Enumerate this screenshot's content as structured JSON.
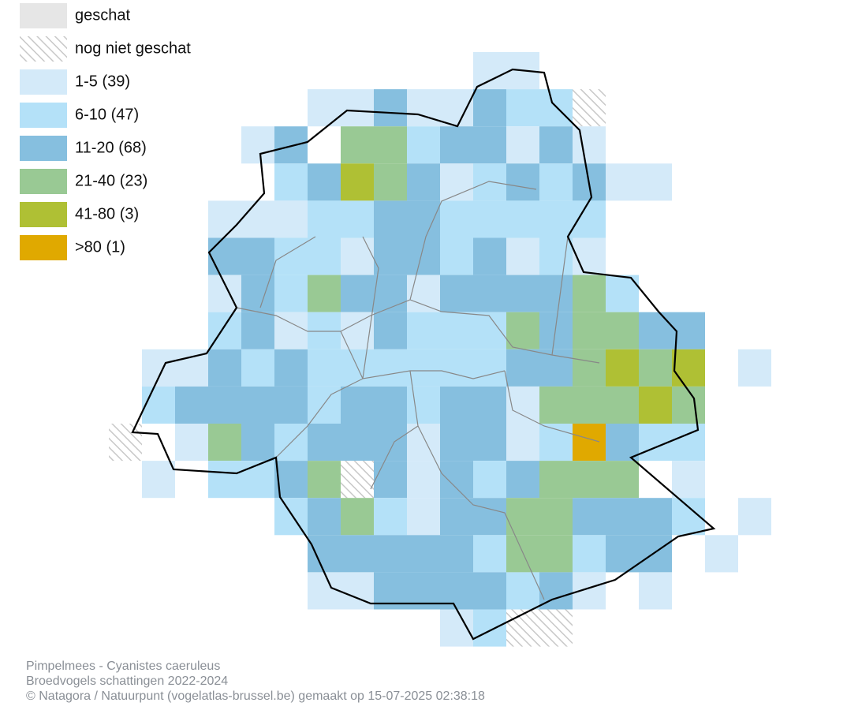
{
  "legend": {
    "items": [
      {
        "label": "geschat"
      },
      {
        "label": "nog niet geschat"
      },
      {
        "label": "1-5 (39)"
      },
      {
        "label": "6-10 (47)"
      },
      {
        "label": "11-20 (68)"
      },
      {
        "label": "21-40 (23)"
      },
      {
        "label": "41-80 (3)"
      },
      {
        "label": ">80 (1)"
      }
    ]
  },
  "footer": {
    "lines": [
      "Pimpelmees - Cyanistes caeruleus",
      "Broedvogels schattingen 2022-2024",
      "© Natagora / Natuurpunt (vogelatlas-brussel.be) gemaakt op 15-07-2025 02:38:18"
    ]
  }
}
